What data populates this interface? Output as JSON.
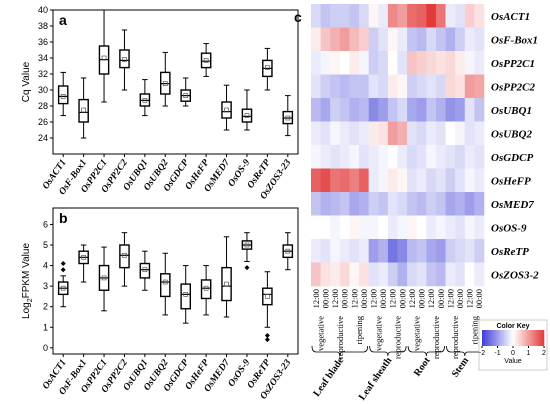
{
  "chart_data": [
    {
      "panel": "a",
      "type": "boxplot",
      "ylabel": "Cq Value",
      "ylim": [
        22,
        40
      ],
      "yticks": [
        24,
        26,
        28,
        30,
        32,
        34,
        36,
        38,
        40
      ],
      "categories": [
        "OsACT1",
        "OsF-Box1",
        "OsPP2C1",
        "OsPP2C2",
        "OsUBQ1",
        "OsUBQ2",
        "OsGDCP",
        "OsHeFP",
        "OsMED7",
        "OsOS-9",
        "OsReTP",
        "OsZOS3-23"
      ],
      "boxes": [
        {
          "min": 26.8,
          "q1": 28.3,
          "median": 29.2,
          "q3": 30.5,
          "max": 32.2,
          "mean": 29.2
        },
        {
          "min": 24.0,
          "q1": 26.0,
          "median": 27.2,
          "q3": 28.8,
          "max": 31.5,
          "mean": 27.5
        },
        {
          "min": 28.5,
          "q1": 32.0,
          "median": 33.8,
          "q3": 35.5,
          "max": 40.0,
          "mean": 34.0
        },
        {
          "min": 30.0,
          "q1": 32.8,
          "median": 33.7,
          "q3": 35.0,
          "max": 37.5,
          "mean": 33.8
        },
        {
          "min": 26.8,
          "q1": 28.0,
          "median": 28.7,
          "q3": 29.5,
          "max": 31.3,
          "mean": 28.7
        },
        {
          "min": 28.0,
          "q1": 29.5,
          "median": 30.8,
          "q3": 32.2,
          "max": 34.7,
          "mean": 30.8
        },
        {
          "min": 28.0,
          "q1": 28.6,
          "median": 29.3,
          "q3": 30.0,
          "max": 31.5,
          "mean": 29.3
        },
        {
          "min": 31.7,
          "q1": 32.8,
          "median": 33.6,
          "q3": 34.6,
          "max": 35.8,
          "mean": 33.7
        },
        {
          "min": 25.0,
          "q1": 26.5,
          "median": 27.3,
          "q3": 28.5,
          "max": 30.6,
          "mean": 27.5
        },
        {
          "min": 25.0,
          "q1": 26.0,
          "median": 26.7,
          "q3": 27.6,
          "max": 30.0,
          "mean": 26.8
        },
        {
          "min": 30.0,
          "q1": 31.7,
          "median": 32.7,
          "q3": 33.7,
          "max": 35.2,
          "mean": 32.8
        },
        {
          "min": 24.3,
          "q1": 25.8,
          "median": 26.5,
          "q3": 27.3,
          "max": 29.3,
          "mean": 26.5
        }
      ]
    },
    {
      "panel": "b",
      "type": "boxplot",
      "ylabel": "Log2FPKM Value",
      "ylim": [
        -0.3,
        6.8
      ],
      "yticks": [
        0,
        1,
        2,
        3,
        4,
        5,
        6
      ],
      "categories": [
        "OsACT1",
        "OsF-Box1",
        "OsPP2C1",
        "OsPP2C2",
        "OsUBQ1",
        "OsUBQ2",
        "OsGDCP",
        "OsHeFP",
        "OsMED7",
        "OsOS-9",
        "OsReTP",
        "OsZOS3-23"
      ],
      "boxes": [
        {
          "min": 2.0,
          "q1": 2.6,
          "median": 2.9,
          "q3": 3.2,
          "max": 3.5,
          "mean": 2.9,
          "outliers": [
            3.8,
            4.1
          ]
        },
        {
          "min": 3.2,
          "q1": 4.1,
          "median": 4.4,
          "q3": 4.7,
          "max": 5.0,
          "mean": 4.4
        },
        {
          "min": 1.8,
          "q1": 2.8,
          "median": 3.4,
          "q3": 4.0,
          "max": 4.9,
          "mean": 3.4
        },
        {
          "min": 3.0,
          "q1": 3.9,
          "median": 4.5,
          "q3": 5.0,
          "max": 5.6,
          "mean": 4.5
        },
        {
          "min": 2.8,
          "q1": 3.4,
          "median": 3.8,
          "q3": 4.1,
          "max": 4.7,
          "mean": 3.8
        },
        {
          "min": 1.6,
          "q1": 2.5,
          "median": 3.2,
          "q3": 3.6,
          "max": 4.6,
          "mean": 3.2
        },
        {
          "min": 1.2,
          "q1": 1.9,
          "median": 2.6,
          "q3": 3.1,
          "max": 4.0,
          "mean": 2.6
        },
        {
          "min": 1.6,
          "q1": 2.4,
          "median": 2.9,
          "q3": 3.3,
          "max": 4.0,
          "mean": 2.9
        },
        {
          "min": 1.5,
          "q1": 2.3,
          "median": 3.0,
          "q3": 3.9,
          "max": 5.4,
          "mean": 3.1
        },
        {
          "min": 4.2,
          "q1": 4.8,
          "median": 5.0,
          "q3": 5.2,
          "max": 5.6,
          "mean": 5.0,
          "outliers": [
            3.9
          ]
        },
        {
          "min": 1.0,
          "q1": 2.1,
          "median": 2.6,
          "q3": 2.9,
          "max": 3.7,
          "mean": 2.5,
          "outliers": [
            0.6,
            0.4
          ]
        },
        {
          "min": 3.8,
          "q1": 4.4,
          "median": 4.7,
          "q3": 5.0,
          "max": 5.6,
          "mean": 4.7
        }
      ]
    },
    {
      "panel": "c",
      "type": "heatmap",
      "rows": [
        "OsACT1",
        "OsF-Box1",
        "OsPP2C1",
        "OsPP2C2",
        "OsUBQ1",
        "OsUBQ2",
        "OsGDCP",
        "OsHeFP",
        "OsMED7",
        "OsOS-9",
        "OsReTP",
        "OsZOS3-2"
      ],
      "columns": [
        {
          "time": "12:00",
          "stage": "vegetative",
          "tissue": "Leaf blade"
        },
        {
          "time": "00:00",
          "stage": "vegetative",
          "tissue": "Leaf blade"
        },
        {
          "time": "12:00",
          "stage": "reproductive",
          "tissue": "Leaf blade"
        },
        {
          "time": "00:00",
          "stage": "reproductive",
          "tissue": "Leaf blade"
        },
        {
          "time": "12:00",
          "stage": "ripening",
          "tissue": "Leaf blade"
        },
        {
          "time": "00:00",
          "stage": "ripening",
          "tissue": "Leaf blade"
        },
        {
          "time": "12:00",
          "stage": "vegetative",
          "tissue": "Leaf sheath"
        },
        {
          "time": "00:00",
          "stage": "vegetative",
          "tissue": "Leaf sheath"
        },
        {
          "time": "12:00",
          "stage": "reproductive",
          "tissue": "Leaf sheath"
        },
        {
          "time": "00:00",
          "stage": "reproductive",
          "tissue": "Leaf sheath"
        },
        {
          "time": "12:00",
          "stage": "vegetative",
          "tissue": "Root"
        },
        {
          "time": "00:00",
          "stage": "vegetative",
          "tissue": "Root"
        },
        {
          "time": "12:00",
          "stage": "reproductive",
          "tissue": "Root"
        },
        {
          "time": "00:00",
          "stage": "reproductive",
          "tissue": "Root"
        },
        {
          "time": "12:00",
          "stage": "reproductive",
          "tissue": "Stem"
        },
        {
          "time": "00:00",
          "stage": "reproductive",
          "tissue": "Stem"
        },
        {
          "time": "12:00",
          "stage": "ripening",
          "tissue": "Stem"
        },
        {
          "time": "00:00",
          "stage": "ripening",
          "tissue": "Stem"
        }
      ],
      "values": [
        [
          -0.4,
          -0.6,
          -0.5,
          -0.5,
          -0.6,
          -0.4,
          0.1,
          -0.2,
          1.2,
          1.0,
          1.5,
          1.6,
          2.0,
          1.4,
          -0.2,
          -0.3,
          0.5,
          0.3
        ],
        [
          0.2,
          0.6,
          0.8,
          1.0,
          0.7,
          0.5,
          -0.5,
          -0.3,
          0.1,
          -0.2,
          -0.6,
          -0.7,
          -0.4,
          -0.6,
          -0.8,
          -0.5,
          -0.2,
          -0.3
        ],
        [
          -0.2,
          -0.1,
          0.1,
          0.0,
          0.2,
          -0.1,
          -0.5,
          -0.4,
          0.0,
          -0.3,
          0.6,
          0.5,
          0.4,
          0.3,
          0.4,
          0.2,
          -0.1,
          -0.2
        ],
        [
          -0.3,
          -0.5,
          -0.6,
          -0.7,
          -0.6,
          -0.6,
          -0.3,
          -0.4,
          0.2,
          0.1,
          -0.5,
          -0.4,
          -0.3,
          -0.4,
          0.4,
          0.3,
          1.0,
          0.9
        ],
        [
          -0.7,
          -0.9,
          -0.5,
          -0.6,
          -0.8,
          -0.7,
          -1.2,
          -1.0,
          -0.6,
          -0.4,
          -0.9,
          -1.0,
          -0.6,
          -0.8,
          -1.1,
          -1.0,
          -0.3,
          -0.6
        ],
        [
          -0.2,
          -0.3,
          -0.1,
          -0.2,
          -0.3,
          -0.2,
          0.2,
          0.3,
          1.0,
          0.8,
          -0.3,
          -0.4,
          -0.2,
          -0.3,
          0.0,
          -0.1,
          -0.3,
          -0.2
        ],
        [
          -0.1,
          -0.2,
          -0.3,
          -0.2,
          -0.1,
          -0.3,
          -0.2,
          -0.1,
          0.0,
          -0.2,
          -0.4,
          -0.3,
          -0.1,
          -0.2,
          -0.3,
          -0.4,
          -0.2,
          -0.3
        ],
        [
          1.6,
          1.8,
          1.4,
          1.5,
          1.3,
          1.6,
          -0.2,
          -0.1,
          0.2,
          0.1,
          -0.3,
          -0.2,
          -0.4,
          -0.3,
          -0.5,
          -0.3,
          -0.1,
          -0.2
        ],
        [
          -0.6,
          -0.8,
          -0.7,
          -0.6,
          -0.9,
          -0.8,
          -0.5,
          -0.6,
          -0.3,
          -0.4,
          -0.6,
          -0.7,
          -0.5,
          -0.6,
          -0.9,
          -0.8,
          -1.0,
          -0.8
        ],
        [
          0.0,
          0.0,
          -0.1,
          0.0,
          0.1,
          -0.1,
          -0.1,
          0.0,
          -0.2,
          -0.1,
          0.1,
          0.0,
          -0.2,
          -0.1,
          -0.2,
          -0.3,
          -0.1,
          -0.2
        ],
        [
          -0.2,
          -0.3,
          -0.1,
          -0.2,
          -0.3,
          -0.2,
          -1.0,
          -0.8,
          -1.4,
          -1.2,
          -0.7,
          -0.6,
          -0.9,
          -1.0,
          -0.5,
          -0.4,
          -0.3,
          -0.5
        ],
        [
          0.6,
          0.3,
          0.2,
          0.4,
          0.1,
          0.3,
          -0.3,
          -0.2,
          -0.5,
          -0.8,
          -0.4,
          -0.3,
          -0.6,
          -0.7,
          -0.2,
          -0.3,
          0.0,
          -0.2
        ]
      ],
      "col_groups": [
        "Leaf blade",
        "Leaf sheath",
        "Root",
        "Stem"
      ],
      "color_key": {
        "title": "Color Key",
        "xlabel": "Value",
        "ticks": [
          -2,
          -1,
          0,
          1,
          2
        ],
        "low": "#3b3bd6",
        "mid": "#ffffff",
        "high": "#e23a3a"
      }
    }
  ]
}
